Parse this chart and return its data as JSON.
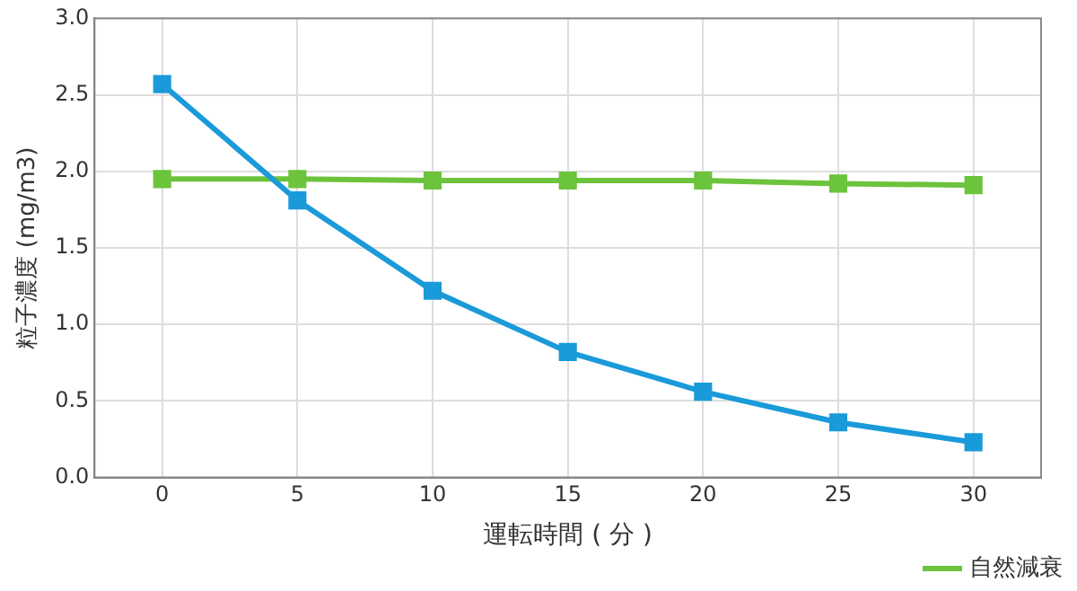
{
  "chart_data": {
    "type": "line",
    "xlabel": "運転時間 ( 分 )",
    "ylabel": "粒子濃度 (mg/m3)",
    "x": [
      0,
      5,
      10,
      15,
      20,
      25,
      30
    ],
    "series": [
      {
        "color": "#1a9ad9",
        "values": [
          2.57,
          1.81,
          1.22,
          0.82,
          0.56,
          0.36,
          0.23
        ]
      },
      {
        "name": "自然減衰",
        "color": "#6cc33c",
        "values": [
          1.95,
          1.95,
          1.94,
          1.94,
          1.94,
          1.92,
          1.91
        ]
      }
    ],
    "xlim": [
      -2.5,
      32.5
    ],
    "xticks": [
      0,
      5,
      10,
      15,
      20,
      25,
      30
    ],
    "ylim": [
      0,
      3
    ],
    "yticks": [
      {
        "value": 0,
        "label": "0.0"
      },
      {
        "value": 0.5,
        "label": "0.5"
      },
      {
        "value": 1,
        "label": "1.0"
      },
      {
        "value": 1.5,
        "label": "1.5"
      },
      {
        "value": 2,
        "label": "2.0"
      },
      {
        "value": 2.5,
        "label": "2.5"
      },
      {
        "value": 3,
        "label": "3.0"
      }
    ],
    "grid": true,
    "legend": "bottom right",
    "marker": "square",
    "line_style": "solid"
  }
}
